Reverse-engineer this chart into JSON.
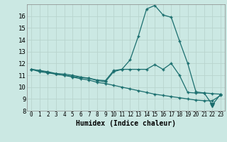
{
  "xlabel": "Humidex (Indice chaleur)",
  "background_color": "#cbe8e3",
  "grid_color": "#b8d4ce",
  "line_color": "#1a6e6e",
  "xlim": [
    -0.5,
    23.5
  ],
  "ylim": [
    8,
    17
  ],
  "xticks": [
    0,
    1,
    2,
    3,
    4,
    5,
    6,
    7,
    8,
    9,
    10,
    11,
    12,
    13,
    14,
    15,
    16,
    17,
    18,
    19,
    20,
    21,
    22,
    23
  ],
  "yticks": [
    8,
    9,
    10,
    11,
    12,
    13,
    14,
    15,
    16
  ],
  "series1": [
    11.5,
    11.4,
    11.3,
    11.15,
    11.1,
    11.0,
    10.85,
    10.75,
    10.6,
    10.55,
    11.4,
    11.5,
    11.5,
    11.5,
    11.5,
    11.9,
    11.5,
    12.0,
    11.0,
    9.55,
    9.5,
    9.5,
    9.45,
    9.4
  ],
  "series2": [
    11.5,
    11.3,
    11.2,
    11.1,
    11.0,
    10.9,
    10.8,
    10.75,
    10.55,
    10.45,
    11.3,
    11.5,
    12.3,
    14.3,
    16.6,
    16.9,
    16.1,
    15.9,
    13.9,
    12.0,
    9.6,
    9.5,
    8.5,
    9.4
  ],
  "series3": [
    11.5,
    11.4,
    11.25,
    11.1,
    11.0,
    10.85,
    10.7,
    10.6,
    10.4,
    10.3,
    10.15,
    10.0,
    9.85,
    9.7,
    9.55,
    9.4,
    9.3,
    9.2,
    9.1,
    9.0,
    8.9,
    8.85,
    8.85,
    9.3
  ],
  "triangle_x": 22,
  "triangle_y": 8.5
}
